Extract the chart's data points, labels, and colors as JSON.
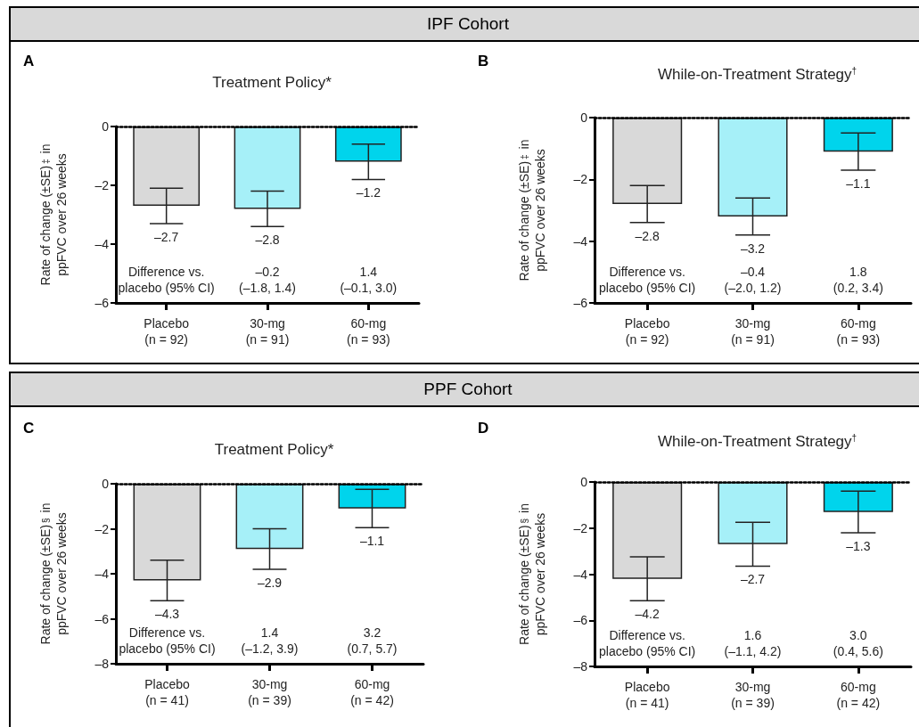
{
  "chart_data": [
    {
      "type": "bar",
      "title": "Treatment Policy*",
      "ylabel": "Rate of change (±SE)$^{‡}$ in\nppFVC over 26 weeks",
      "categories": [
        "Placebo\n(n = 92)",
        "30-mg\n(n = 91)",
        "60-mg\n(n = 93)"
      ],
      "values": [
        -2.7,
        -2.8,
        -1.2
      ],
      "value_labels": [
        "–2.7",
        "–2.8",
        "–1.2"
      ],
      "errors": [
        0.6,
        0.6,
        0.6
      ],
      "colors": [
        "#d9d9d9",
        "#a6f0f8",
        "#00d4ec"
      ],
      "ylim": [
        -6,
        0
      ],
      "yticks": [
        {
          "value": 0,
          "label": "0"
        },
        {
          "value": -2,
          "label": "–2"
        },
        {
          "value": -4,
          "label": "–4"
        },
        {
          "value": -6,
          "label": "–6"
        }
      ],
      "ref_lines": [
        {
          "axis": "y",
          "value": 0,
          "color": "#000000",
          "line_style": "dotted"
        }
      ],
      "annotations": [
        "A",
        "Difference vs.\nplacebo (95% CI)",
        "–0.2\n(–1.8, 1.4)",
        "1.4\n(–0.1, 3.0)",
        "IPF Cohort"
      ]
    },
    {
      "type": "bar",
      "title": "While-on-Treatment Strategy$^{†}$",
      "ylabel": "Rate of change (±SE)$^{‡}$ in\nppFVC over 26 weeks",
      "categories": [
        "Placebo\n(n = 92)",
        "30-mg\n(n = 91)",
        "60-mg\n(n = 93)"
      ],
      "values": [
        -2.8,
        -3.2,
        -1.1
      ],
      "value_labels": [
        "–2.8",
        "–3.2",
        "–1.1"
      ],
      "errors": [
        0.6,
        0.6,
        0.6
      ],
      "colors": [
        "#d9d9d9",
        "#a6f0f8",
        "#00d4ec"
      ],
      "ylim": [
        -6,
        0
      ],
      "yticks": [
        {
          "value": 0,
          "label": "0"
        },
        {
          "value": -2,
          "label": "–2"
        },
        {
          "value": -4,
          "label": "–4"
        },
        {
          "value": -6,
          "label": "–6"
        }
      ],
      "ref_lines": [
        {
          "axis": "y",
          "value": 0,
          "color": "#000000",
          "line_style": "dotted"
        }
      ],
      "annotations": [
        "B",
        "Difference vs.\nplacebo (95% CI)",
        "–0.4\n(–2.0, 1.2)",
        "1.8\n(0.2, 3.4)"
      ]
    },
    {
      "type": "bar",
      "title": "Treatment Policy*",
      "ylabel": "Rate of change (±SE)$^{§}$ in\nppFVC over 26 weeks",
      "categories": [
        "Placebo\n(n = 41)",
        "30-mg\n(n = 39)",
        "60-mg\n(n = 42)"
      ],
      "values": [
        -4.3,
        -2.9,
        -1.1
      ],
      "value_labels": [
        "–4.3",
        "–2.9",
        "–1.1"
      ],
      "errors": [
        0.9,
        0.9,
        0.85
      ],
      "colors": [
        "#d9d9d9",
        "#a6f0f8",
        "#00d4ec"
      ],
      "ylim": [
        -8,
        0
      ],
      "yticks": [
        {
          "value": 0,
          "label": "0"
        },
        {
          "value": -2,
          "label": "–2"
        },
        {
          "value": -4,
          "label": "–4"
        },
        {
          "value": -6,
          "label": "–6"
        },
        {
          "value": -8,
          "label": "–8"
        }
      ],
      "ref_lines": [
        {
          "axis": "y",
          "value": 0,
          "color": "#000000",
          "line_style": "dotted"
        }
      ],
      "annotations": [
        "C",
        "Difference vs.\nplacebo (95% CI)",
        "1.4\n(–1.2, 3.9)",
        "3.2\n(0.7, 5.7)",
        "PPF Cohort"
      ]
    },
    {
      "type": "bar",
      "title": "While-on-Treatment Strategy$^{†}$",
      "ylabel": "Rate of change (±SE)$^{§}$ in\nppFVC over 26 weeks",
      "categories": [
        "Placebo\n(n = 41)",
        "30-mg\n(n = 39)",
        "60-mg\n(n = 42)"
      ],
      "values": [
        -4.2,
        -2.7,
        -1.3
      ],
      "value_labels": [
        "–4.2",
        "–2.7",
        "–1.3"
      ],
      "errors": [
        0.95,
        0.95,
        0.9
      ],
      "colors": [
        "#d9d9d9",
        "#a6f0f8",
        "#00d4ec"
      ],
      "ylim": [
        -8,
        0
      ],
      "yticks": [
        {
          "value": 0,
          "label": "0"
        },
        {
          "value": -2,
          "label": "–2"
        },
        {
          "value": -4,
          "label": "–4"
        },
        {
          "value": -6,
          "label": "–6"
        },
        {
          "value": -8,
          "label": "–8"
        }
      ],
      "ref_lines": [
        {
          "axis": "y",
          "value": 0,
          "color": "#000000",
          "line_style": "dotted"
        }
      ],
      "annotations": [
        "D",
        "Difference vs.\nplacebo (95% CI)",
        "1.6\n(–1.1, 4.2)",
        "3.0\n(0.4, 5.6)"
      ]
    }
  ]
}
